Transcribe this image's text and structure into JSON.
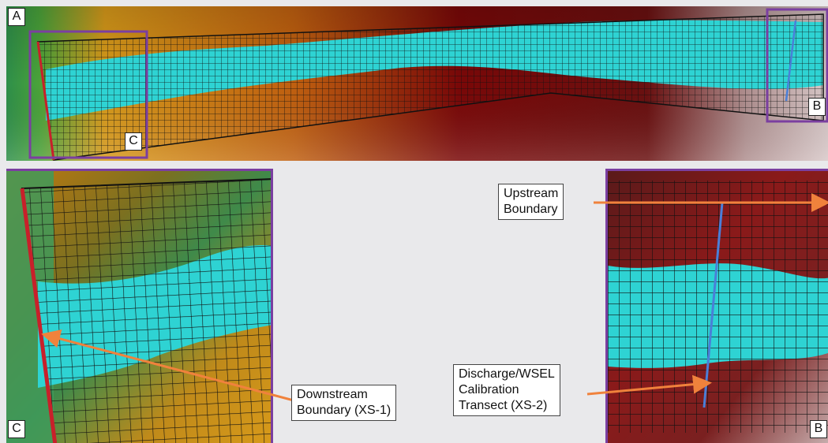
{
  "panels": {
    "a": {
      "label": "A"
    },
    "b": {
      "label": "B"
    },
    "c": {
      "label": "C"
    }
  },
  "inset_labels": {
    "c_in_a": "C",
    "b_in_a": "B"
  },
  "callouts": {
    "upstream": "Upstream\nBoundary",
    "discharge": "Discharge/WSEL\nCalibration\nTransect (XS-2)",
    "downstream": "Downstream\nBoundary (XS-1)"
  },
  "colors": {
    "water": "#2ed3d3",
    "grid": "#111111",
    "frame": "#7b3fa0",
    "boundary": "#c8202a",
    "transect": "#4a7fd8",
    "arrow": "#f0823c",
    "terrain_low": "#3fa35a",
    "terrain_mid": "#d89a1a",
    "terrain_high": "#8a1010",
    "terrain_peak": "#d8c8c8"
  }
}
